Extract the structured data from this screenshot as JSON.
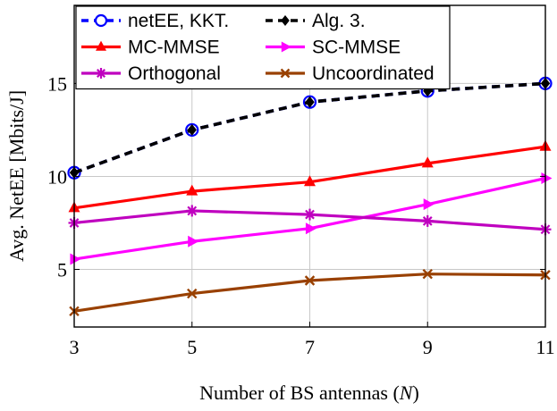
{
  "chart_data": {
    "type": "line",
    "title": "",
    "xlabel": "Number of BS antennas (",
    "xlabel_var": "N",
    "xlabel_close": ")",
    "ylabel": "Avg. NetEE [Mbits/J]",
    "x": [
      3,
      5,
      7,
      9,
      11
    ],
    "xticks": [
      "3",
      "5",
      "7",
      "9",
      "11"
    ],
    "yticks": [
      5,
      10,
      15
    ],
    "ytick_labels": [
      "5",
      "10",
      "15"
    ],
    "xlim": [
      3,
      11
    ],
    "ylim": [
      1.9,
      19.2
    ],
    "grid": true,
    "legend_position": "top",
    "series": [
      {
        "name": "netEE, KKT.",
        "values": [
          10.2,
          12.5,
          14.0,
          14.6,
          15.0
        ],
        "color": "#0000ff",
        "marker": "circle-open",
        "dash": "dashed"
      },
      {
        "name": "Alg. 3.",
        "values": [
          10.2,
          12.5,
          14.0,
          14.6,
          15.0
        ],
        "color": "#000000",
        "marker": "diamond",
        "dash": "dashed"
      },
      {
        "name": "MC-MMSE",
        "values": [
          8.3,
          9.2,
          9.7,
          10.7,
          11.6
        ],
        "color": "#ff0000",
        "marker": "triangle",
        "dash": "solid"
      },
      {
        "name": "SC-MMSE",
        "values": [
          5.55,
          6.5,
          7.2,
          8.5,
          9.9
        ],
        "color": "#ff00ff",
        "marker": "triangle-right",
        "dash": "solid"
      },
      {
        "name": "Orthogonal",
        "values": [
          7.5,
          8.15,
          7.95,
          7.6,
          7.15
        ],
        "color": "#bf00bf",
        "marker": "star",
        "dash": "solid"
      },
      {
        "name": "Uncoordinated",
        "values": [
          2.75,
          3.7,
          4.4,
          4.75,
          4.7
        ],
        "color": "#994000",
        "marker": "cross",
        "dash": "solid"
      }
    ]
  }
}
